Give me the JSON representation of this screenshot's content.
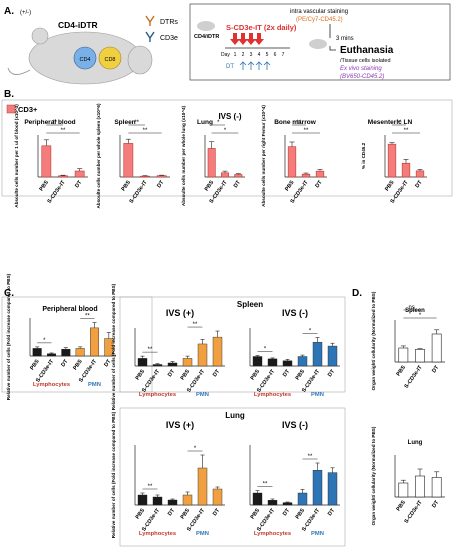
{
  "panel_a": {
    "letter": "A.",
    "mouse_tag": "(+/-)",
    "mouse_title": "CD4-iDTR",
    "legend_dtrs": "DTRs",
    "legend_cd3e": "CD3e",
    "cell_cd4": "CD4",
    "cell_cd8": "CD8",
    "timeline_mouse": "CD4/iDTR",
    "drug": "S-CD3e-IT (2x daily)",
    "days": [
      "Day",
      "1",
      "2",
      "3",
      "4",
      "5",
      "6",
      "7"
    ],
    "dt_label": "DT",
    "iv_stain": "intra vascular staining",
    "iv_stain_reagent": "(PE/Cy7-CD45.2)",
    "wait": "3 mins",
    "euthanasia": "Euthanasia",
    "tissue": "/Tissue cells isolated",
    "ex_vivo": "Ex vivo staining",
    "ex_vivo_reagent": "(BV650-CD45.2)"
  },
  "panel_b": {
    "letter": "B.",
    "legend": "CD3+",
    "ivs": "IVS (-)",
    "colors": {
      "bar": "#f47c7c",
      "edge": "#c0392b"
    }
  },
  "panel_c": {
    "letter": "C.",
    "lymphocytes": "Lymphocytes",
    "pmn": "PMN",
    "colors": {
      "lymph": "#1a1a1a",
      "pmn_pb": "#f0a040",
      "pmn_ivs_pos": "#f0a040",
      "pmn_ivs_neg": "#2e75b6"
    }
  },
  "panel_d": {
    "letter": "D."
  },
  "chart_data": [
    {
      "id": "b1",
      "type": "bar",
      "title": "Peripheral blood",
      "ylabel": "Absoulte cells number per 1 ul of blood (x10^3)",
      "categories": [
        "PBS",
        "S-CD3e-IT",
        "DT"
      ],
      "values": [
        2.6,
        0.1,
        0.5
      ],
      "errors": [
        0.5,
        0.05,
        0.2
      ],
      "ylim": [
        0,
        3.5
      ],
      "sig": [
        "**",
        "**"
      ]
    },
    {
      "id": "b2",
      "type": "bar",
      "title": "Spleen",
      "ylabel": "Absoulte cells number per whole spleen (x10^6)",
      "categories": [
        "PBS",
        "S-CD3e-IT",
        "DT"
      ],
      "values": [
        20,
        0.5,
        0.8
      ],
      "errors": [
        2.5,
        0.3,
        0.3
      ],
      "ylim": [
        0,
        25
      ],
      "sig": [
        "**",
        "**"
      ]
    },
    {
      "id": "b3",
      "type": "bar",
      "title": "Lung",
      "ylabel": "Absoulte cells number per whole lung (x10^4)",
      "categories": [
        "PBS",
        "S-CD3e-IT",
        "DT"
      ],
      "values": [
        17,
        2.5,
        1.5
      ],
      "errors": [
        4,
        1,
        0.5
      ],
      "ylim": [
        0,
        25
      ],
      "sig": [
        "*",
        "*"
      ]
    },
    {
      "id": "b4",
      "type": "bar",
      "title": "Bone marrow",
      "ylabel": "Absoulte cells number per right Femur (x10^4)",
      "categories": [
        "PBS",
        "S-CD3e-IT",
        "DT"
      ],
      "values": [
        13,
        1.2,
        2.5
      ],
      "errors": [
        2,
        0.5,
        0.7
      ],
      "ylim": [
        0,
        18
      ],
      "sig": [
        "**",
        "**"
      ]
    },
    {
      "id": "b5",
      "type": "bar",
      "title": "Mesenteric LN",
      "ylabel": "% in CD45.2",
      "categories": [
        "PBS",
        "S-CD3e-IT",
        "DT"
      ],
      "values": [
        43,
        18,
        8
      ],
      "errors": [
        2,
        5,
        2
      ],
      "ylim": [
        0,
        55
      ],
      "sig": [
        "**",
        "**"
      ]
    },
    {
      "id": "c1",
      "type": "bar",
      "title": "Peripheral blood",
      "ylabel": "Relative number of cells (Fold increase compared to PBS)",
      "groups": [
        "Lymphocytes",
        "PMN"
      ],
      "categories": [
        "PBS",
        "S-CD3e-IT",
        "DT"
      ],
      "series": [
        {
          "name": "Lymphocytes",
          "values": [
            1,
            0.3,
            0.9
          ],
          "errors": [
            0.2,
            0.1,
            0.2
          ]
        },
        {
          "name": "PMN",
          "values": [
            1,
            3.7,
            2.3
          ],
          "errors": [
            0.2,
            0.7,
            0.8
          ]
        }
      ],
      "ylim": [
        0,
        5
      ],
      "sig": [
        "*",
        "**"
      ]
    },
    {
      "id": "c2",
      "type": "bar",
      "title": "IVS (+)",
      "ylabel": "Relative number of cells (Fold increase compared to PBS)",
      "groups": [
        "Lymphocytes",
        "PMN"
      ],
      "categories": [
        "PBS",
        "S-CD3e-IT",
        "DT"
      ],
      "series": [
        {
          "name": "Lymphocytes",
          "values": [
            1,
            0.2,
            0.4
          ],
          "errors": [
            0.3,
            0.1,
            0.2
          ]
        },
        {
          "name": "PMN",
          "values": [
            1,
            2.9,
            3.8
          ],
          "errors": [
            0.3,
            0.6,
            0.8
          ]
        }
      ],
      "ylim": [
        0,
        5
      ],
      "sig": [
        "**",
        "**"
      ]
    },
    {
      "id": "c3",
      "type": "bar",
      "title": "IVS (-)",
      "ylabel": "",
      "groups": [
        "Lymphocytes",
        "PMN"
      ],
      "categories": [
        "PBS",
        "S-CD3e-IT",
        "DT"
      ],
      "series": [
        {
          "name": "Lymphocytes",
          "values": [
            1,
            0.75,
            0.55
          ],
          "errors": [
            0.1,
            0.1,
            0.15
          ]
        },
        {
          "name": "PMN",
          "values": [
            1,
            2.5,
            2.1
          ],
          "errors": [
            0.15,
            0.5,
            0.3
          ]
        }
      ],
      "ylim": [
        0,
        4
      ],
      "sig": [
        "*",
        "*"
      ]
    },
    {
      "id": "c4",
      "type": "bar",
      "title": "IVS (+)",
      "ylabel": "Relative number of cells (Fold increase compared to PBS)",
      "groups": [
        "Lymphocytes",
        "PMN"
      ],
      "categories": [
        "PBS",
        "S-CD3e-IT",
        "DT"
      ],
      "series": [
        {
          "name": "Lymphocytes",
          "values": [
            1,
            0.8,
            0.5
          ],
          "errors": [
            0.2,
            0.2,
            0.1
          ]
        },
        {
          "name": "PMN",
          "values": [
            1,
            3.7,
            1.6
          ],
          "errors": [
            0.3,
            1.3,
            0.2
          ]
        }
      ],
      "ylim": [
        0,
        6
      ],
      "sig": [
        "**",
        "*"
      ]
    },
    {
      "id": "c5",
      "type": "bar",
      "title": "IVS (-)",
      "ylabel": "",
      "groups": [
        "Lymphocytes",
        "PMN"
      ],
      "categories": [
        "PBS",
        "S-CD3e-IT",
        "DT"
      ],
      "series": [
        {
          "name": "Lymphocytes",
          "values": [
            1,
            0.4,
            0.2
          ],
          "errors": [
            0.2,
            0.1,
            0.05
          ]
        },
        {
          "name": "PMN",
          "values": [
            1,
            2.9,
            2.7
          ],
          "errors": [
            0.3,
            0.6,
            0.4
          ]
        }
      ],
      "ylim": [
        0,
        5
      ],
      "sig": [
        "**",
        "**"
      ]
    },
    {
      "id": "d1",
      "type": "bar",
      "title": "Spleen",
      "ylabel": "Organ weight/ cellularity (Normalized to PBS)",
      "categories": [
        "PBS",
        "S-CD3e-IT",
        "DT"
      ],
      "values": [
        1,
        0.9,
        2
      ],
      "errors": [
        0.15,
        0.05,
        0.3
      ],
      "ylim": [
        0,
        3
      ],
      "sig": [
        "ns",
        "*"
      ]
    },
    {
      "id": "d2",
      "type": "bar",
      "title": "Lung",
      "ylabel": "Organ weight/ cellularity (Normalized to PBS)",
      "categories": [
        "PBS",
        "S-CD3e-IT",
        "DT"
      ],
      "values": [
        1,
        1.5,
        1.4
      ],
      "errors": [
        0.2,
        0.5,
        0.4
      ],
      "ylim": [
        0,
        3
      ],
      "sig": []
    }
  ]
}
